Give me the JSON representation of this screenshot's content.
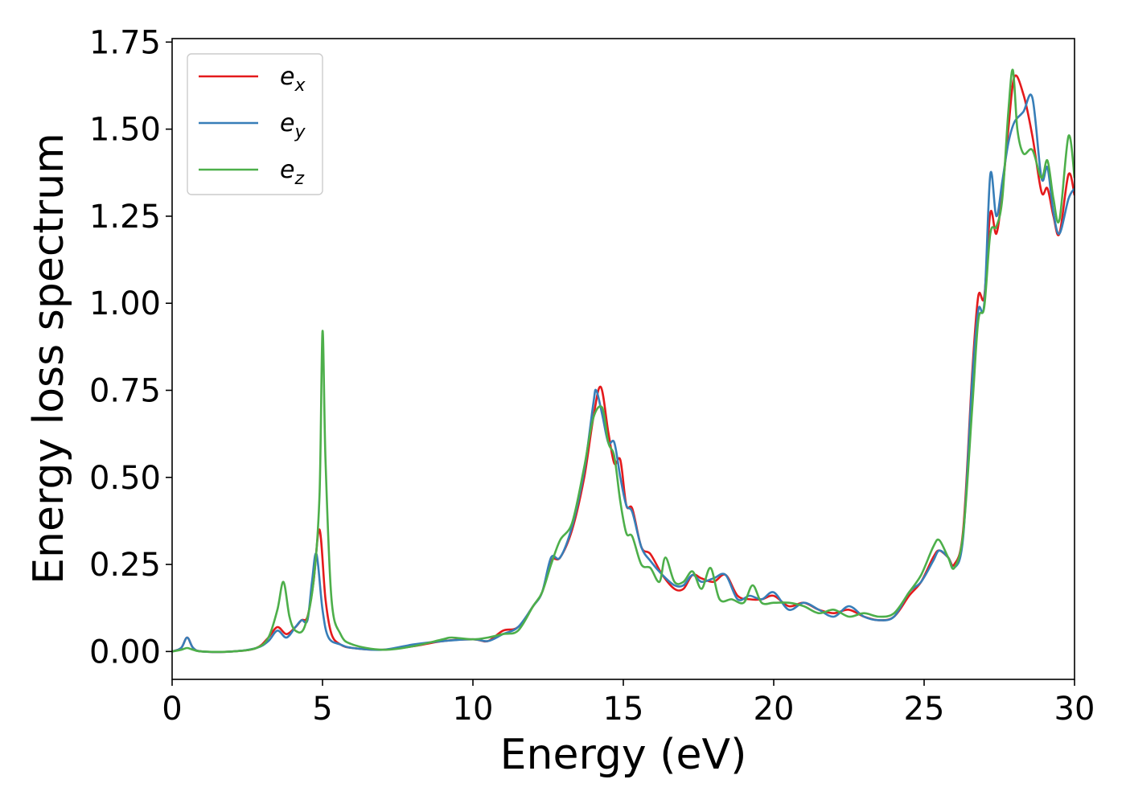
{
  "chart_data": {
    "type": "line",
    "title": "",
    "xlabel": "Energy (eV)",
    "ylabel": "Energy loss spectrum",
    "xlim": [
      0,
      30
    ],
    "ylim": [
      -0.08,
      1.76
    ],
    "x_ticks": [
      0,
      5,
      10,
      15,
      20,
      25,
      30
    ],
    "x_tick_labels": [
      "0",
      "5",
      "10",
      "15",
      "20",
      "25",
      "30"
    ],
    "y_ticks": [
      0.0,
      0.25,
      0.5,
      0.75,
      1.0,
      1.25,
      1.5,
      1.75
    ],
    "y_tick_labels": [
      "0.00",
      "0.25",
      "0.50",
      "0.75",
      "1.00",
      "1.25",
      "1.50",
      "1.75"
    ],
    "grid": false,
    "legend_position": "top-left",
    "series": [
      {
        "name": "e_x",
        "label_base": "e",
        "label_sub": "x",
        "color": "#e41a1c",
        "points": [
          [
            0,
            0.0
          ],
          [
            0.3,
            0.01
          ],
          [
            0.5,
            0.04
          ],
          [
            0.7,
            0.01
          ],
          [
            1.0,
            0.0
          ],
          [
            2.0,
            0.0
          ],
          [
            2.8,
            0.01
          ],
          [
            3.2,
            0.04
          ],
          [
            3.5,
            0.07
          ],
          [
            3.8,
            0.05
          ],
          [
            4.1,
            0.07
          ],
          [
            4.3,
            0.09
          ],
          [
            4.5,
            0.1
          ],
          [
            4.7,
            0.2
          ],
          [
            4.9,
            0.35
          ],
          [
            5.1,
            0.15
          ],
          [
            5.3,
            0.05
          ],
          [
            5.6,
            0.02
          ],
          [
            6.0,
            0.01
          ],
          [
            7.0,
            0.005
          ],
          [
            8.0,
            0.015
          ],
          [
            9.0,
            0.03
          ],
          [
            10.0,
            0.035
          ],
          [
            10.5,
            0.03
          ],
          [
            11.0,
            0.06
          ],
          [
            11.5,
            0.07
          ],
          [
            12.0,
            0.13
          ],
          [
            12.3,
            0.17
          ],
          [
            12.6,
            0.26
          ],
          [
            12.9,
            0.27
          ],
          [
            13.3,
            0.35
          ],
          [
            13.7,
            0.5
          ],
          [
            14.0,
            0.67
          ],
          [
            14.25,
            0.76
          ],
          [
            14.5,
            0.63
          ],
          [
            14.7,
            0.54
          ],
          [
            14.9,
            0.55
          ],
          [
            15.1,
            0.42
          ],
          [
            15.3,
            0.41
          ],
          [
            15.6,
            0.3
          ],
          [
            15.9,
            0.28
          ],
          [
            16.3,
            0.22
          ],
          [
            16.7,
            0.18
          ],
          [
            17.0,
            0.18
          ],
          [
            17.3,
            0.22
          ],
          [
            17.6,
            0.21
          ],
          [
            18.0,
            0.2
          ],
          [
            18.4,
            0.22
          ],
          [
            18.8,
            0.16
          ],
          [
            19.2,
            0.15
          ],
          [
            19.6,
            0.15
          ],
          [
            20.0,
            0.16
          ],
          [
            20.5,
            0.13
          ],
          [
            21.0,
            0.14
          ],
          [
            21.5,
            0.12
          ],
          [
            22.0,
            0.11
          ],
          [
            22.5,
            0.12
          ],
          [
            23.0,
            0.1
          ],
          [
            23.5,
            0.09
          ],
          [
            24.0,
            0.1
          ],
          [
            24.5,
            0.16
          ],
          [
            24.9,
            0.2
          ],
          [
            25.3,
            0.27
          ],
          [
            25.5,
            0.29
          ],
          [
            25.8,
            0.27
          ],
          [
            26.0,
            0.25
          ],
          [
            26.3,
            0.35
          ],
          [
            26.6,
            0.8
          ],
          [
            26.8,
            1.02
          ],
          [
            27.0,
            1.02
          ],
          [
            27.2,
            1.26
          ],
          [
            27.4,
            1.2
          ],
          [
            27.6,
            1.32
          ],
          [
            27.8,
            1.5
          ],
          [
            28.0,
            1.65
          ],
          [
            28.3,
            1.6
          ],
          [
            28.6,
            1.48
          ],
          [
            28.9,
            1.32
          ],
          [
            29.1,
            1.33
          ],
          [
            29.3,
            1.25
          ],
          [
            29.5,
            1.2
          ],
          [
            29.8,
            1.37
          ],
          [
            30.0,
            1.31
          ]
        ]
      },
      {
        "name": "e_y",
        "label_base": "e",
        "label_sub": "y",
        "color": "#377eb8",
        "points": [
          [
            0,
            0.0
          ],
          [
            0.3,
            0.01
          ],
          [
            0.5,
            0.04
          ],
          [
            0.7,
            0.01
          ],
          [
            1.0,
            0.0
          ],
          [
            2.0,
            0.0
          ],
          [
            2.8,
            0.01
          ],
          [
            3.2,
            0.03
          ],
          [
            3.5,
            0.06
          ],
          [
            3.8,
            0.04
          ],
          [
            4.1,
            0.07
          ],
          [
            4.3,
            0.09
          ],
          [
            4.5,
            0.09
          ],
          [
            4.65,
            0.2
          ],
          [
            4.8,
            0.28
          ],
          [
            5.0,
            0.12
          ],
          [
            5.2,
            0.04
          ],
          [
            5.6,
            0.02
          ],
          [
            6.0,
            0.01
          ],
          [
            7.0,
            0.005
          ],
          [
            8.0,
            0.02
          ],
          [
            9.0,
            0.03
          ],
          [
            10.0,
            0.035
          ],
          [
            10.5,
            0.03
          ],
          [
            11.0,
            0.05
          ],
          [
            11.5,
            0.07
          ],
          [
            12.0,
            0.13
          ],
          [
            12.3,
            0.17
          ],
          [
            12.6,
            0.27
          ],
          [
            12.9,
            0.27
          ],
          [
            13.3,
            0.36
          ],
          [
            13.7,
            0.52
          ],
          [
            14.0,
            0.71
          ],
          [
            14.1,
            0.75
          ],
          [
            14.3,
            0.68
          ],
          [
            14.5,
            0.6
          ],
          [
            14.7,
            0.6
          ],
          [
            14.9,
            0.5
          ],
          [
            15.1,
            0.42
          ],
          [
            15.3,
            0.4
          ],
          [
            15.6,
            0.3
          ],
          [
            15.9,
            0.26
          ],
          [
            16.3,
            0.22
          ],
          [
            16.7,
            0.19
          ],
          [
            17.0,
            0.19
          ],
          [
            17.3,
            0.22
          ],
          [
            17.6,
            0.2
          ],
          [
            18.0,
            0.21
          ],
          [
            18.4,
            0.22
          ],
          [
            18.8,
            0.15
          ],
          [
            19.2,
            0.16
          ],
          [
            19.6,
            0.15
          ],
          [
            20.0,
            0.17
          ],
          [
            20.5,
            0.12
          ],
          [
            21.0,
            0.14
          ],
          [
            21.5,
            0.12
          ],
          [
            22.0,
            0.1
          ],
          [
            22.5,
            0.13
          ],
          [
            23.0,
            0.1
          ],
          [
            23.5,
            0.09
          ],
          [
            24.0,
            0.1
          ],
          [
            24.5,
            0.17
          ],
          [
            24.9,
            0.2
          ],
          [
            25.3,
            0.26
          ],
          [
            25.5,
            0.29
          ],
          [
            25.8,
            0.27
          ],
          [
            26.0,
            0.24
          ],
          [
            26.3,
            0.33
          ],
          [
            26.6,
            0.78
          ],
          [
            26.8,
            0.98
          ],
          [
            27.0,
            1.0
          ],
          [
            27.2,
            1.37
          ],
          [
            27.4,
            1.25
          ],
          [
            27.6,
            1.35
          ],
          [
            27.8,
            1.46
          ],
          [
            28.0,
            1.52
          ],
          [
            28.3,
            1.55
          ],
          [
            28.6,
            1.59
          ],
          [
            28.9,
            1.36
          ],
          [
            29.1,
            1.39
          ],
          [
            29.3,
            1.26
          ],
          [
            29.5,
            1.2
          ],
          [
            29.8,
            1.3
          ],
          [
            30.0,
            1.33
          ]
        ]
      },
      {
        "name": "e_z",
        "label_base": "e",
        "label_sub": "z",
        "color": "#4daf4a",
        "points": [
          [
            0,
            0.0
          ],
          [
            0.3,
            0.005
          ],
          [
            0.5,
            0.01
          ],
          [
            0.7,
            0.005
          ],
          [
            1.0,
            0.0
          ],
          [
            2.0,
            0.0
          ],
          [
            2.8,
            0.01
          ],
          [
            3.2,
            0.04
          ],
          [
            3.5,
            0.12
          ],
          [
            3.7,
            0.2
          ],
          [
            3.9,
            0.1
          ],
          [
            4.1,
            0.06
          ],
          [
            4.4,
            0.07
          ],
          [
            4.7,
            0.2
          ],
          [
            4.9,
            0.45
          ],
          [
            5.0,
            0.92
          ],
          [
            5.1,
            0.55
          ],
          [
            5.3,
            0.15
          ],
          [
            5.6,
            0.05
          ],
          [
            6.0,
            0.02
          ],
          [
            7.0,
            0.005
          ],
          [
            8.0,
            0.015
          ],
          [
            9.0,
            0.035
          ],
          [
            9.3,
            0.04
          ],
          [
            10.0,
            0.035
          ],
          [
            10.5,
            0.04
          ],
          [
            11.0,
            0.05
          ],
          [
            11.5,
            0.06
          ],
          [
            12.0,
            0.13
          ],
          [
            12.3,
            0.17
          ],
          [
            12.6,
            0.25
          ],
          [
            12.9,
            0.32
          ],
          [
            13.3,
            0.37
          ],
          [
            13.7,
            0.53
          ],
          [
            14.0,
            0.67
          ],
          [
            14.3,
            0.7
          ],
          [
            14.5,
            0.6
          ],
          [
            14.7,
            0.56
          ],
          [
            14.9,
            0.43
          ],
          [
            15.1,
            0.34
          ],
          [
            15.3,
            0.33
          ],
          [
            15.6,
            0.25
          ],
          [
            15.9,
            0.24
          ],
          [
            16.2,
            0.2
          ],
          [
            16.4,
            0.27
          ],
          [
            16.7,
            0.2
          ],
          [
            17.0,
            0.2
          ],
          [
            17.3,
            0.23
          ],
          [
            17.6,
            0.18
          ],
          [
            17.9,
            0.24
          ],
          [
            18.2,
            0.15
          ],
          [
            18.6,
            0.15
          ],
          [
            19.0,
            0.14
          ],
          [
            19.3,
            0.19
          ],
          [
            19.6,
            0.14
          ],
          [
            20.0,
            0.14
          ],
          [
            20.5,
            0.14
          ],
          [
            21.0,
            0.13
          ],
          [
            21.5,
            0.11
          ],
          [
            22.0,
            0.12
          ],
          [
            22.5,
            0.1
          ],
          [
            23.0,
            0.11
          ],
          [
            23.5,
            0.1
          ],
          [
            24.0,
            0.11
          ],
          [
            24.5,
            0.17
          ],
          [
            24.9,
            0.22
          ],
          [
            25.3,
            0.3
          ],
          [
            25.5,
            0.32
          ],
          [
            25.8,
            0.27
          ],
          [
            26.0,
            0.24
          ],
          [
            26.3,
            0.34
          ],
          [
            26.6,
            0.7
          ],
          [
            26.8,
            0.95
          ],
          [
            27.0,
            0.99
          ],
          [
            27.2,
            1.2
          ],
          [
            27.4,
            1.22
          ],
          [
            27.6,
            1.3
          ],
          [
            27.8,
            1.55
          ],
          [
            27.95,
            1.67
          ],
          [
            28.1,
            1.5
          ],
          [
            28.3,
            1.43
          ],
          [
            28.6,
            1.44
          ],
          [
            28.9,
            1.36
          ],
          [
            29.1,
            1.41
          ],
          [
            29.3,
            1.3
          ],
          [
            29.5,
            1.24
          ],
          [
            29.8,
            1.48
          ],
          [
            30.0,
            1.36
          ]
        ]
      }
    ]
  }
}
